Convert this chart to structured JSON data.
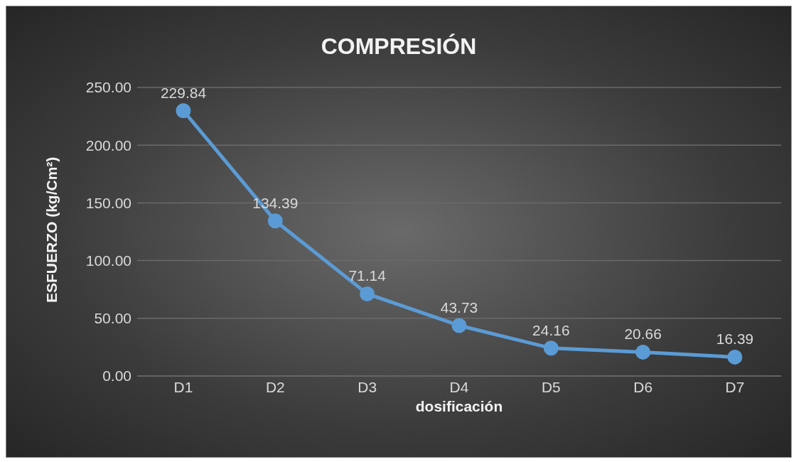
{
  "chart_data": {
    "type": "line",
    "title": "COMPRESIÓN",
    "xlabel": "dosificación",
    "ylabel": "ESFUERZO (kg/Cm²)",
    "categories": [
      "D1",
      "D2",
      "D3",
      "D4",
      "D5",
      "D6",
      "D7"
    ],
    "series": [
      {
        "color": "#5b9bd5",
        "values": [
          229.84,
          134.39,
          71.14,
          43.73,
          24.16,
          20.66,
          16.39
        ]
      }
    ],
    "ylim": [
      0,
      250
    ],
    "yticks": [
      {
        "value": 0,
        "label": "0.00"
      },
      {
        "value": 50,
        "label": "50.00"
      },
      {
        "value": 100,
        "label": "100.00"
      },
      {
        "value": 150,
        "label": "150.00"
      },
      {
        "value": 200,
        "label": "200.00"
      },
      {
        "value": 250,
        "label": "250.00"
      }
    ],
    "grid": "y",
    "marker": "circle",
    "data_labels": true,
    "legend": false
  }
}
